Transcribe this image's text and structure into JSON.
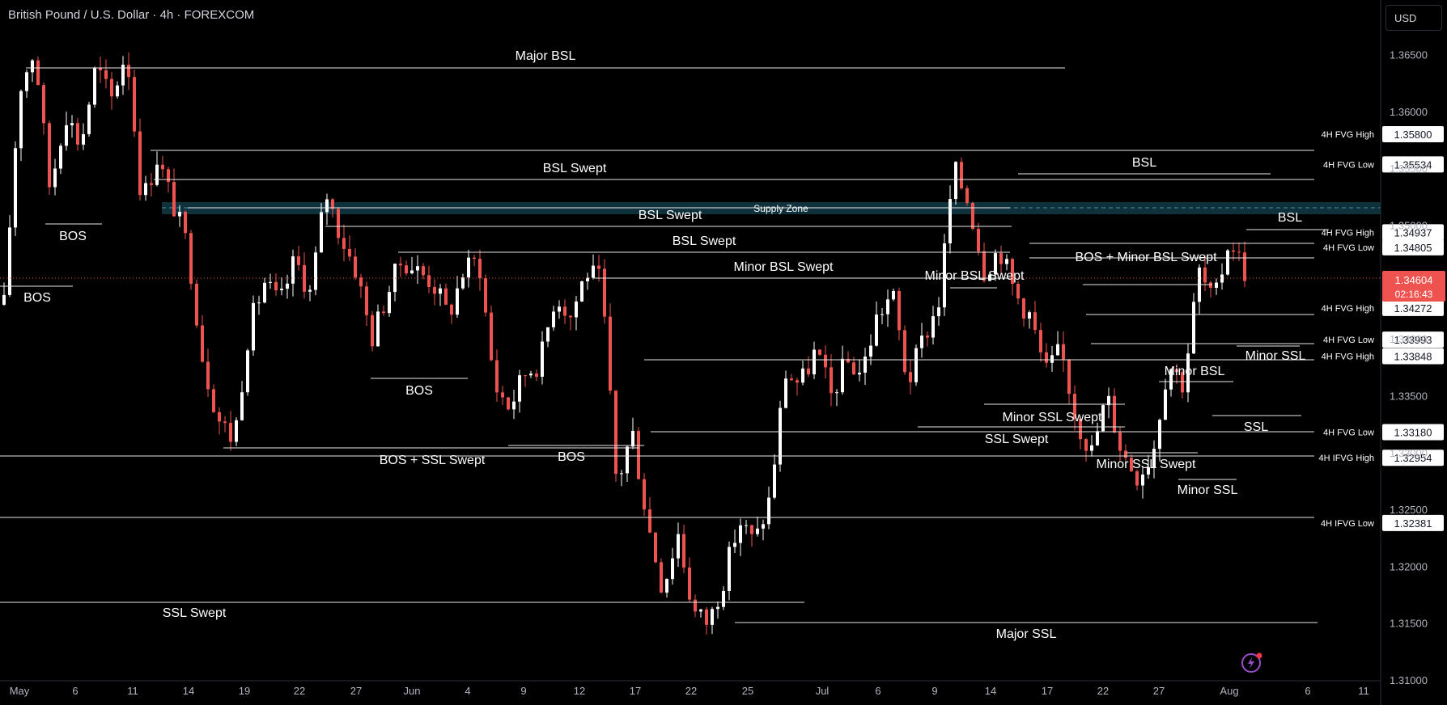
{
  "header": {
    "title": "British Pound / U.S. Dollar · 4h · FOREXCOM"
  },
  "currency": "USD",
  "chart_data": {
    "type": "candlestick",
    "symbol": "GBPUSD",
    "timeframe": "4h",
    "ylim": [
      1.3078,
      1.3698
    ],
    "y_ticks": [
      "1.36500",
      "1.36000",
      "1.35500",
      "1.35000",
      "1.34500",
      "1.34000",
      "1.33500",
      "1.33000",
      "1.32500",
      "1.32000",
      "1.31500",
      "1.31000"
    ],
    "x_ticks": [
      "May",
      "6",
      "11",
      "14",
      "19",
      "22",
      "27",
      "Jun",
      "4",
      "9",
      "12",
      "17",
      "22",
      "25",
      "Jul",
      "6",
      "9",
      "14",
      "17",
      "22",
      "27",
      "Aug",
      "6",
      "11"
    ],
    "current_price": {
      "value": "1.34604",
      "countdown": "02:16:43"
    },
    "level_tags": [
      {
        "name": "4H FVG High",
        "price": "1.35800"
      },
      {
        "name": "4H FVG Low",
        "price": "1.35534"
      },
      {
        "name": "4H FVG High",
        "price": "1.34937"
      },
      {
        "name": "4H FVG Low",
        "price": "1.34805"
      },
      {
        "name": "4H FVG High",
        "price": "1.34272"
      },
      {
        "name": "4H FVG Low",
        "price": "1.33993"
      },
      {
        "name": "4H FVG High",
        "price": "1.33848"
      },
      {
        "name": "4H FVG Low",
        "price": "1.33180"
      },
      {
        "name": "4H IFVG High",
        "price": "1.32954"
      },
      {
        "name": "4H IFVG Low",
        "price": "1.32381"
      }
    ],
    "zone": {
      "label": "Supply Zone",
      "low": 1.353,
      "high": 1.3543
    },
    "annotations": [
      "Major BSL",
      "BSL Swept",
      "BSL Swept",
      "BSL Swept",
      "Minor BSL Swept",
      "Minor BSL Swept",
      "BSL",
      "BSL",
      "BOS + Minor BSL Swept",
      "Minor BSL",
      "BOS",
      "BOS",
      "BOS",
      "BOS",
      "BOS + SSL Swept",
      "Minor SSL Swept",
      "SSL Swept",
      "Minor SSL Swept",
      "Minor SSL",
      "Minor SSL",
      "SSL",
      "SSL Swept",
      "Major SSL"
    ],
    "path": [
      1.343,
      1.362,
      1.3655,
      1.353,
      1.36,
      1.357,
      1.364,
      1.361,
      1.3655,
      1.352,
      1.356,
      1.352,
      1.348,
      1.338,
      1.333,
      1.331,
      1.341,
      1.345,
      1.343,
      1.347,
      1.344,
      1.353,
      1.349,
      1.346,
      1.34,
      1.344,
      1.347,
      1.346,
      1.345,
      1.342,
      1.346,
      1.347,
      1.336,
      1.334,
      1.337,
      1.338,
      1.344,
      1.342,
      1.346,
      1.345,
      1.327,
      1.332,
      1.324,
      1.318,
      1.323,
      1.316,
      1.315,
      1.319,
      1.324,
      1.322,
      1.326,
      1.337,
      1.336,
      1.339,
      1.335,
      1.338,
      1.337,
      1.342,
      1.344,
      1.336,
      1.34,
      1.343,
      1.355,
      1.352,
      1.346,
      1.348,
      1.344,
      1.342,
      1.337,
      1.339,
      1.333,
      1.33,
      1.335,
      1.33,
      1.328,
      1.33,
      1.338,
      1.336,
      1.346,
      1.343,
      1.349,
      1.346
    ]
  }
}
